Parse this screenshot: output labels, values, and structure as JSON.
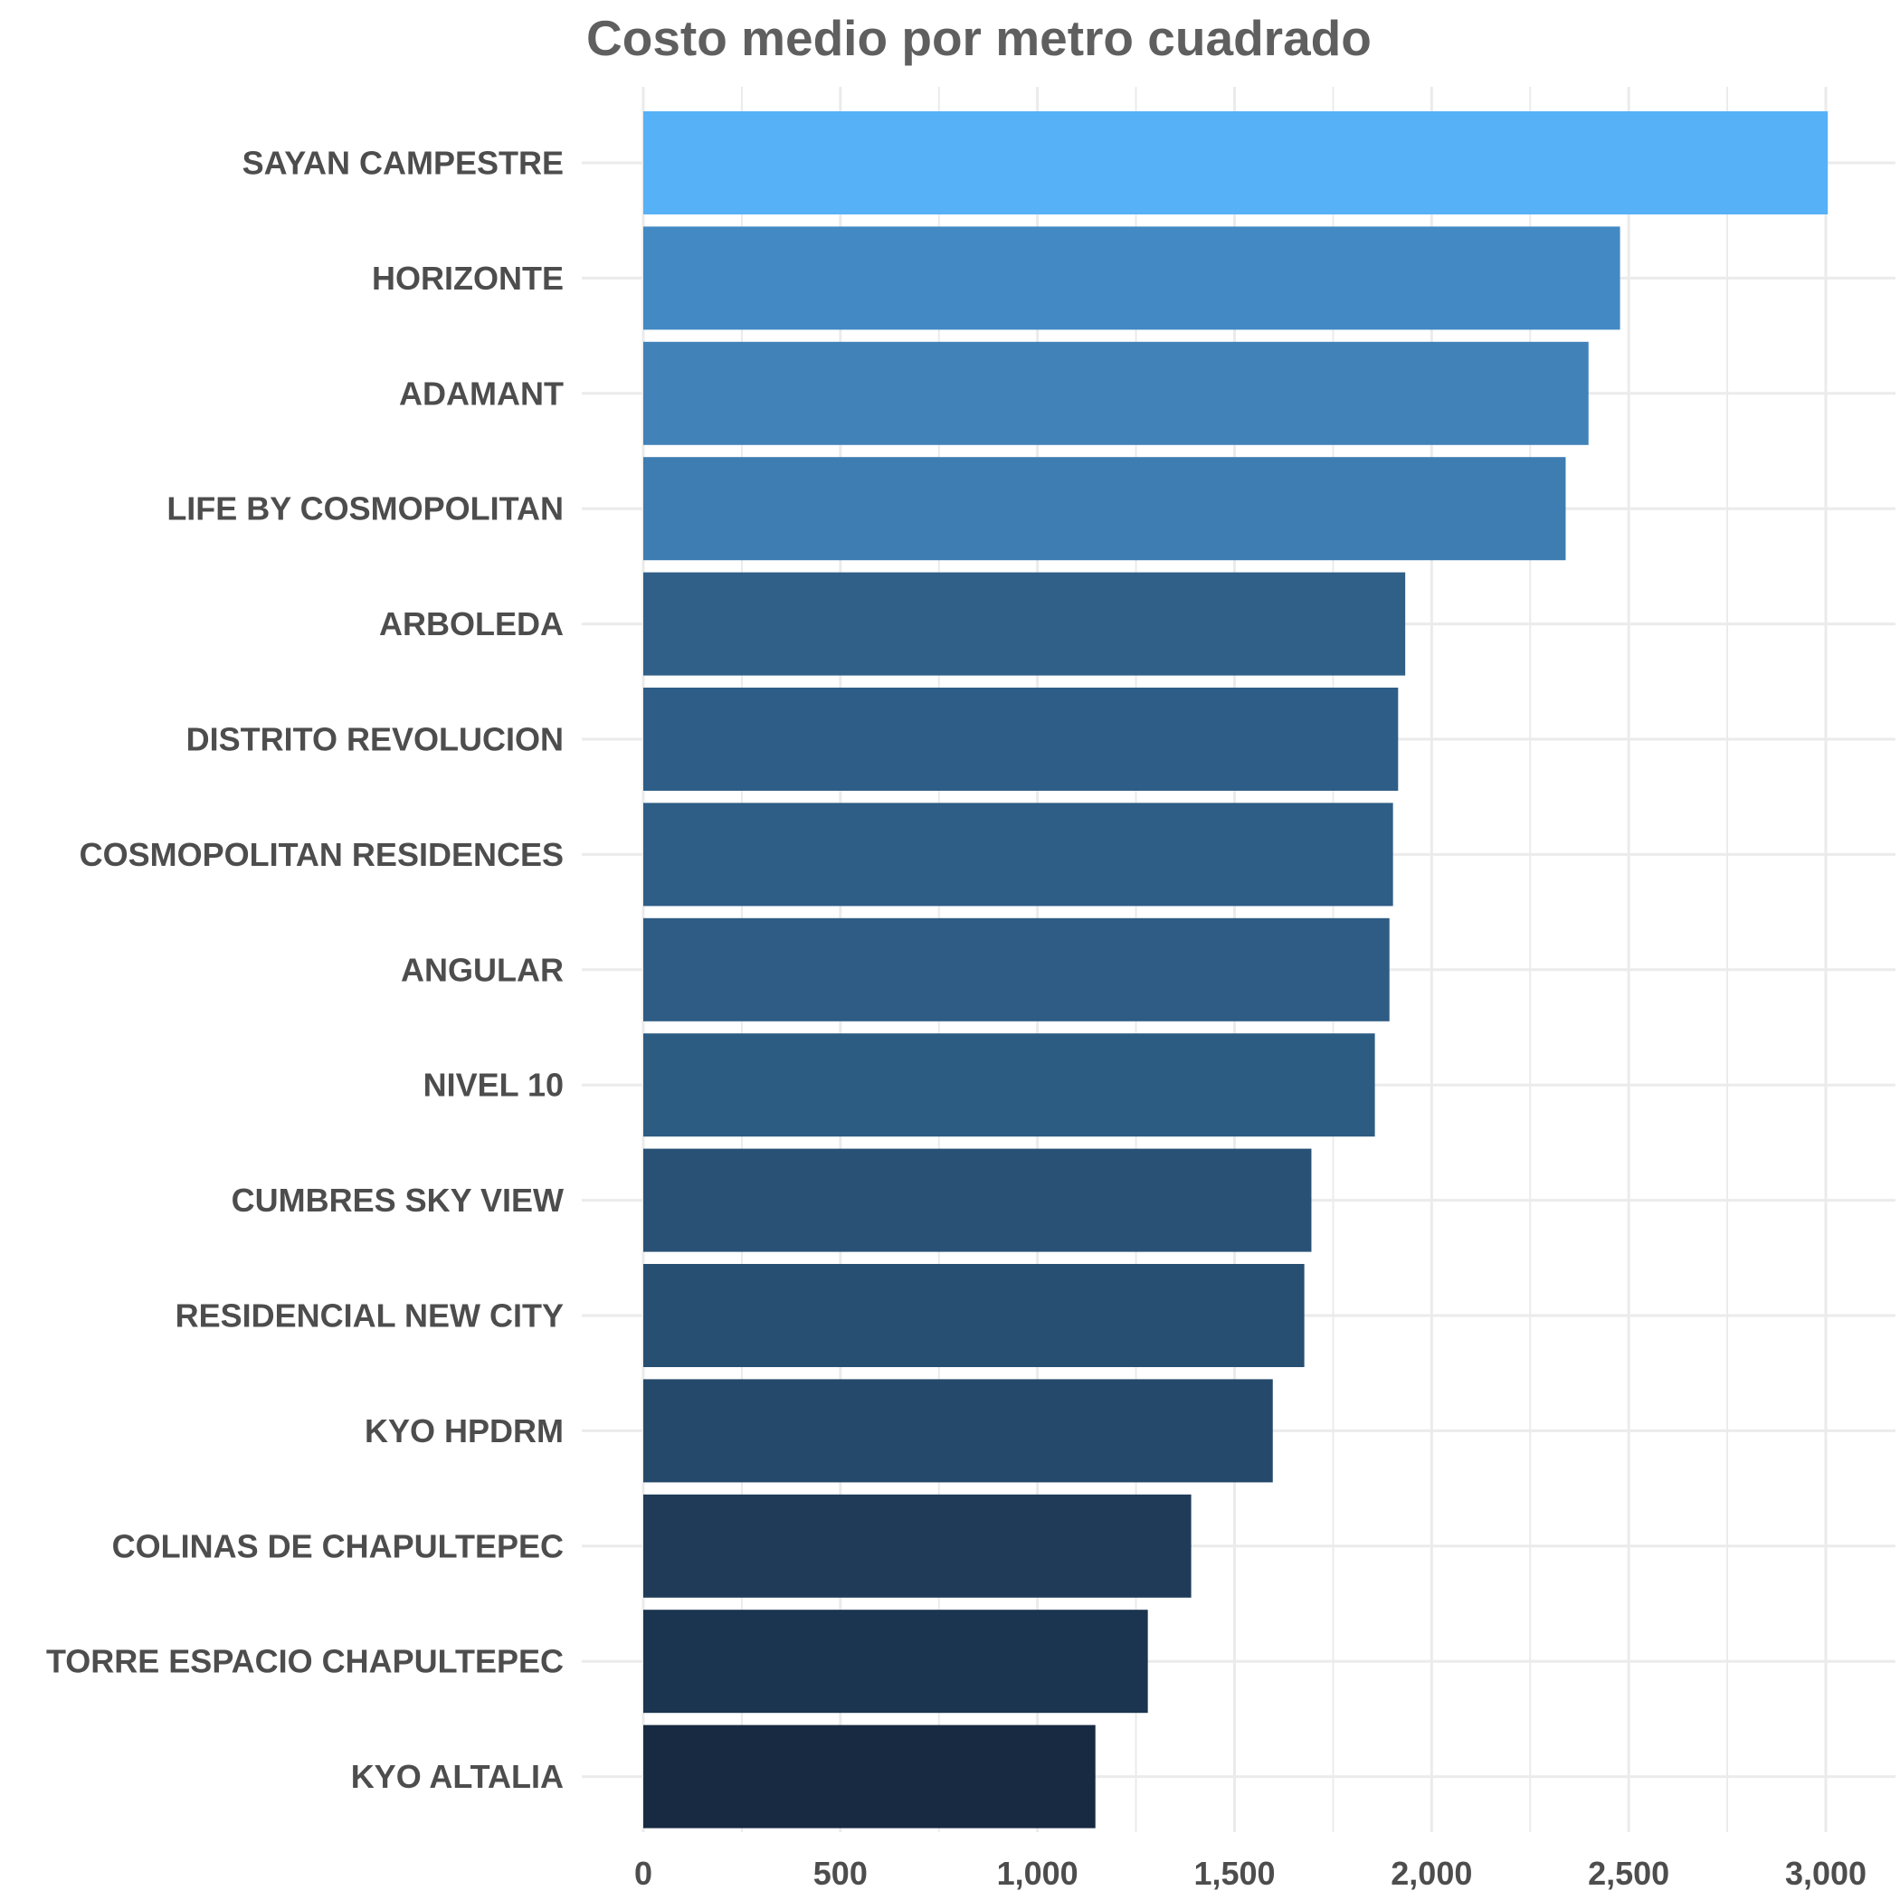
{
  "chart_data": {
    "type": "bar",
    "orientation": "horizontal",
    "title": "Costo medio por metro cuadrado",
    "xlabel": "",
    "ylabel": "",
    "xlim": [
      0,
      3150
    ],
    "x_ticks": [
      0,
      500,
      1000,
      1500,
      2000,
      2500,
      3000
    ],
    "x_tick_labels": [
      "0",
      "500",
      "1,000",
      "1,500",
      "2,000",
      "2,500",
      "3,000"
    ],
    "grid": true,
    "legend": "none",
    "categories": [
      "SAYAN CAMPESTRE",
      "HORIZONTE",
      "ADAMANT",
      "LIFE BY COSMOPOLITAN",
      "ARBOLEDA",
      "DISTRITO REVOLUCION",
      "COSMOPOLITAN RESIDENCES",
      "ANGULAR",
      "NIVEL 10",
      "CUMBRES SKY VIEW",
      "RESIDENCIAL NEW CITY",
      "KYO HPDRM",
      "COLINAS DE CHAPULTEPEC",
      "TORRE ESPACIO CHAPULTEPEC",
      "KYO ALTALIA"
    ],
    "values": [
      3005,
      2478,
      2398,
      2340,
      1933,
      1915,
      1902,
      1893,
      1856,
      1695,
      1677,
      1597,
      1390,
      1280,
      1147
    ],
    "colors": [
      "#56b1f7",
      "#4389c3",
      "#4182b9",
      "#3e7db2",
      "#305f88",
      "#2e5e87",
      "#2e5d86",
      "#2e5c84",
      "#2d5c83",
      "#285175",
      "#274f72",
      "#25496a",
      "#1f3b58",
      "#1b3450",
      "#172a42"
    ],
    "grid_color": "#ebebeb",
    "background": "#ffffff"
  }
}
